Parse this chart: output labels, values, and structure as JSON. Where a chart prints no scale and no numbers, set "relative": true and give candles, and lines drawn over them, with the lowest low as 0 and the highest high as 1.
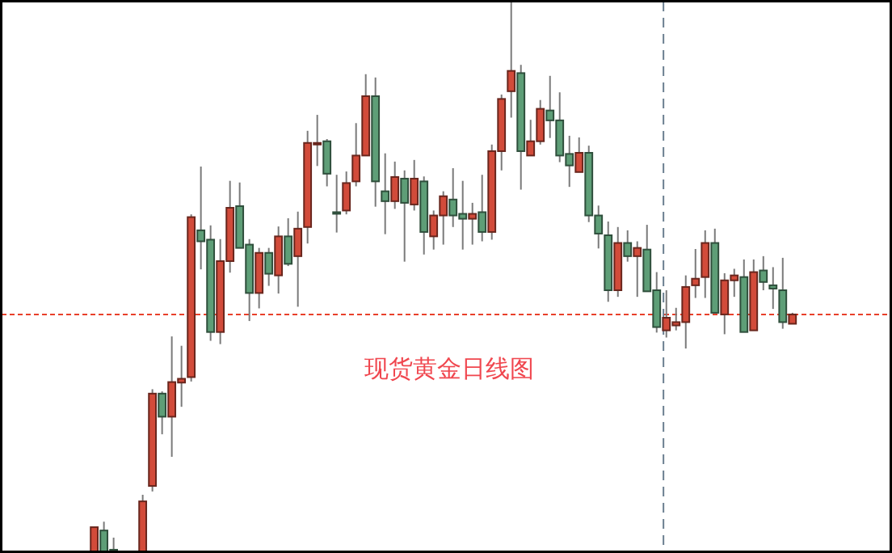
{
  "chart_data": {
    "type": "candlestick",
    "relative": true,
    "categories": [
      null,
      null,
      null,
      null,
      null,
      null,
      null,
      null,
      null,
      null,
      null,
      null,
      null,
      null,
      null,
      null,
      null,
      null,
      null,
      null,
      null,
      null,
      null,
      null,
      null,
      null,
      null,
      null,
      null,
      null,
      null,
      null,
      null,
      null,
      null,
      null,
      null,
      null,
      null,
      null,
      null,
      null,
      null,
      null,
      null,
      null,
      null,
      null,
      null,
      null,
      null,
      null,
      null,
      null,
      null,
      null,
      null,
      null,
      null,
      null,
      null,
      null,
      null,
      null,
      null,
      null,
      null,
      null,
      null,
      null,
      null,
      null,
      null
    ],
    "colors": [
      "#d24b3a",
      "#5e9e77",
      "#5e9e77",
      null,
      null,
      "#d24b3a",
      "#d24b3a",
      "#5e9e77",
      "#d24b3a",
      "#d24b3a",
      "#d24b3a",
      "#5e9e77",
      "#5e9e77",
      "#d24b3a",
      "#d24b3a",
      "#5e9e77",
      "#5e9e77",
      "#d24b3a",
      "#5e9e77",
      "#d24b3a",
      "#5e9e77",
      "#d24b3a",
      "#d24b3a",
      "#d24b3a",
      "#5e9e77",
      "#5e9e77",
      "#d24b3a",
      "#d24b3a",
      "#d24b3a",
      "#5e9e77",
      "#5e9e77",
      "#d24b3a",
      "#5e9e77",
      "#d24b3a",
      "#5e9e77",
      "#d24b3a",
      "#d24b3a",
      "#5e9e77",
      "#5e9e77",
      "#d24b3a",
      "#5e9e77",
      "#d24b3a",
      "#d24b3a",
      "#d24b3a",
      "#5e9e77",
      "#d24b3a",
      "#d24b3a",
      "#5e9e77",
      "#5e9e77",
      "#5e9e77",
      "#d24b3a",
      "#5e9e77",
      "#5e9e77",
      "#5e9e77",
      "#d24b3a",
      "#5e9e77",
      "#d24b3a",
      "#5e9e77",
      "#5e9e77",
      "#d24b3a",
      "#d24b3a",
      "#d24b3a",
      "#d24b3a",
      "#d24b3a",
      "#5e9e77",
      "#d24b3a",
      "#d24b3a",
      "#5e9e77",
      "#d24b3a",
      "#5e9e77",
      "#5e9e77",
      "#5e9e77",
      "#d24b3a"
    ],
    "ohlc": [
      [
        0,
        0.044,
        0,
        0.044
      ],
      [
        0.038,
        0.054,
        0,
        0
      ],
      [
        0.003,
        0.025,
        0,
        0
      ],
      null,
      null,
      [
        0,
        0.103,
        0,
        0.091
      ],
      [
        0.119,
        0.295,
        0.109,
        0.287
      ],
      [
        0.287,
        0.291,
        0.213,
        0.245
      ],
      [
        0.245,
        0.391,
        0.172,
        0.308
      ],
      [
        0.307,
        0.374,
        0.263,
        0.314
      ],
      [
        0.317,
        0.613,
        0.309,
        0.608
      ],
      [
        0.584,
        0.7,
        0.513,
        0.564
      ],
      [
        0.567,
        0.593,
        0.383,
        0.399
      ],
      [
        0.399,
        0.568,
        0.377,
        0.528
      ],
      [
        0.528,
        0.674,
        0.507,
        0.625
      ],
      [
        0.628,
        0.671,
        0.552,
        0.552
      ],
      [
        0.558,
        0.568,
        0.419,
        0.47
      ],
      [
        0.47,
        0.552,
        0.442,
        0.543
      ],
      [
        0.543,
        0.552,
        0.483,
        0.505
      ],
      [
        0.502,
        0.591,
        0.469,
        0.573
      ],
      [
        0.573,
        0.606,
        0.519,
        0.523
      ],
      [
        0.537,
        0.618,
        0.445,
        0.587
      ],
      [
        0.59,
        0.765,
        0.56,
        0.743
      ],
      [
        0.743,
        0.794,
        0.701,
        0.743
      ],
      [
        0.746,
        0.75,
        0.664,
        0.687
      ],
      [
        0.617,
        0.685,
        0.58,
        0.616
      ],
      [
        0.62,
        0.691,
        0.613,
        0.67
      ],
      [
        0.673,
        0.779,
        0.664,
        0.72
      ],
      [
        0.72,
        0.868,
        0.72,
        0.828
      ],
      [
        0.828,
        0.862,
        0.627,
        0.673
      ],
      [
        0.655,
        0.724,
        0.577,
        0.637
      ],
      [
        0.637,
        0.709,
        0.623,
        0.681
      ],
      [
        0.678,
        0.693,
        0.527,
        0.634
      ],
      [
        0.631,
        0.712,
        0.62,
        0.678
      ],
      [
        0.673,
        0.682,
        0.54,
        0.581
      ],
      [
        0.573,
        0.62,
        0.549,
        0.611
      ],
      [
        0.611,
        0.655,
        0.558,
        0.646
      ],
      [
        0.64,
        0.697,
        0.59,
        0.611
      ],
      [
        0.614,
        0.674,
        0.549,
        0.605
      ],
      [
        0.605,
        0.634,
        0.558,
        0.614
      ],
      [
        0.617,
        0.685,
        0.564,
        0.581
      ],
      [
        0.581,
        0.74,
        0.567,
        0.728
      ],
      [
        0.728,
        0.831,
        0.693,
        0.823
      ],
      [
        0.837,
        1.0,
        0.789,
        0.874
      ],
      [
        0.87,
        0.885,
        0.658,
        0.728
      ],
      [
        0.72,
        0.785,
        0.72,
        0.746
      ],
      [
        0.746,
        0.821,
        0.74,
        0.805
      ],
      [
        0.802,
        0.865,
        0.752,
        0.784
      ],
      [
        0.784,
        0.835,
        0.708,
        0.72
      ],
      [
        0.723,
        0.756,
        0.663,
        0.702
      ],
      [
        0.69,
        0.753,
        0.69,
        0.725
      ],
      [
        0.725,
        0.738,
        0.599,
        0.611
      ],
      [
        0.611,
        0.629,
        0.551,
        0.578
      ],
      [
        0.575,
        0.6,
        0.454,
        0.475
      ],
      [
        0.475,
        0.59,
        0.463,
        0.561
      ],
      [
        0.561,
        0.584,
        0.527,
        0.537
      ],
      [
        0.537,
        0.564,
        0.463,
        0.552
      ],
      [
        0.549,
        0.594,
        0.473,
        0.473
      ],
      [
        0.475,
        0.508,
        0.398,
        0.408
      ],
      [
        0.402,
        0.475,
        0.389,
        0.425
      ],
      [
        0.411,
        0.443,
        0.402,
        0.417
      ],
      [
        0.417,
        0.502,
        0.369,
        0.481
      ],
      [
        0.484,
        0.55,
        0.461,
        0.496
      ],
      [
        0.499,
        0.584,
        0.461,
        0.561
      ],
      [
        0.561,
        0.587,
        0.434,
        0.434
      ],
      [
        0.431,
        0.506,
        0.395,
        0.493
      ],
      [
        0.493,
        0.514,
        0.463,
        0.502
      ],
      [
        0.499,
        0.531,
        0.399,
        0.399
      ],
      [
        0.402,
        0.531,
        0.402,
        0.508
      ],
      [
        0.511,
        0.537,
        0.475,
        0.49
      ],
      [
        0.484,
        0.517,
        0.441,
        0.478
      ],
      [
        0.475,
        0.534,
        0.405,
        0.417
      ],
      [
        0.414,
        0.434,
        0.414,
        0.431
      ]
    ],
    "ref_lines": [
      {
        "axis": "y",
        "value": 0.431,
        "color": "#e8402a",
        "line_style": "dotted"
      }
    ],
    "annotations": [
      "现货黄金日线图"
    ]
  }
}
